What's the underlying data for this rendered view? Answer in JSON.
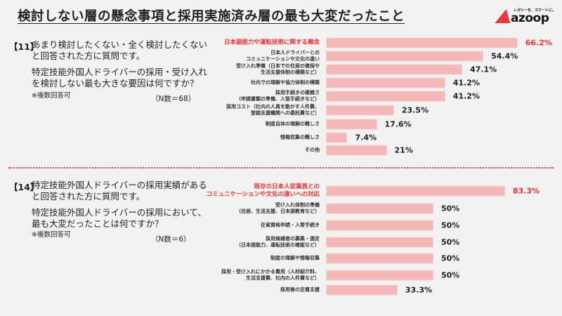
{
  "title": "検討しない層の懸念事項と採用実施済み層の最も大変だったこと",
  "logo": {
    "tagline": "レガシーを、スマートに。",
    "word": "azoop"
  },
  "colors": {
    "bar": "#f5b8b9",
    "highlight": "#f23030",
    "logo_red": "#e8393b"
  },
  "q11": {
    "num": "【11】",
    "lines": [
      "あまり検討したくない・全く検討したくない",
      "と回答された方に質問です。",
      "特定技能外国人ドライバーの採用・受け入れ",
      "を検討しない最も大きな要因は何ですか？"
    ],
    "note": "※複数回答可",
    "n": "（N数＝68）"
  },
  "q14": {
    "num": "【14】",
    "lines": [
      "特定技能外国人ドライバーの採用実績がある",
      "と回答された方に質問です。",
      "特定技能外国人ドライバーの採用において、",
      "最も大変だったことは何ですか？"
    ],
    "note": "※複数回答可",
    "n": "（N数＝6）"
  },
  "chart_data": [
    {
      "type": "bar",
      "orientation": "horizontal",
      "unit": "%",
      "categories": [
        "日本語能力や運転技術に関する懸念",
        "日本人ドライバーとの\nコミュニケーションや文化の違い",
        "受け入れ準備（日本での住居の確保や\n生活支援体制の構築など）",
        "社内での理解や協力体制の構築",
        "採用手続きの複雑さ\n（申請書類の準備、入管手続きなど）",
        "採用コスト（社内の人員を動かす人件費、\n登録支援機関への委託費など）",
        "制度自体の理解の難しさ",
        "情報収集の難しさ",
        "その他"
      ],
      "values": [
        66.2,
        54.4,
        47.1,
        41.2,
        41.2,
        23.5,
        17.6,
        7.4,
        21
      ],
      "labels": [
        "66.2%",
        "54.4%",
        "47.1%",
        "41.2%",
        "41.2%",
        "23.5%",
        "17.6%",
        "7.4%",
        "21%"
      ],
      "highlight_index": 0
    },
    {
      "type": "bar",
      "orientation": "horizontal",
      "unit": "%",
      "categories": [
        "既存の日本人従業員との\nコミュニケーションや文化の違いへの対応",
        "受け入れ体制の準備\n（住居、生活支援、日本語教育など）",
        "在留資格申請・入管手続き",
        "採用候補者の募集・選定\n（日本語能力、運転技術の確認など）",
        "制度の理解や情報収集",
        "採用・受け入れにかかる費用（人材紹介料、\n生活支援費、社内の人件費など）",
        "採用後の定着支援"
      ],
      "values": [
        83.3,
        50,
        50,
        50,
        50,
        50,
        33.3
      ],
      "labels": [
        "83.3%",
        "50%",
        "50%",
        "50%",
        "50%",
        "50%",
        "33.3%"
      ],
      "highlight_index": 0
    }
  ]
}
